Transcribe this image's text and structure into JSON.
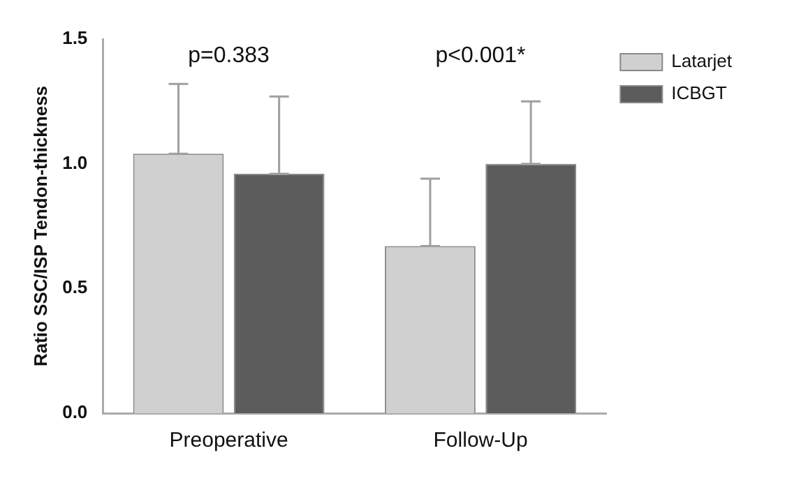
{
  "chart_data": {
    "type": "bar",
    "ylabel": "Ratio SSC/ISP Tendon-thickness",
    "categories": [
      "Preoperative",
      "Follow-Up"
    ],
    "series": [
      {
        "name": "Latarjet",
        "color": "#d0d0d0",
        "values": [
          1.04,
          0.67
        ],
        "errors": [
          [
            1.04,
            1.32
          ],
          [
            0.67,
            0.94
          ]
        ]
      },
      {
        "name": "ICBGT",
        "color": "#5c5c5c",
        "values": [
          0.96,
          1.0
        ],
        "errors": [
          [
            0.96,
            1.27
          ],
          [
            1.0,
            1.25
          ]
        ]
      }
    ],
    "ylim": [
      0,
      1.5
    ],
    "yticks": [
      {
        "value": 0,
        "label": "0.0"
      },
      0.5,
      {
        "value": 1,
        "label": "1.0"
      },
      1.5
    ],
    "annotations": [
      "p=0.383",
      "p<0.001*"
    ],
    "grid": false,
    "legend": "top right"
  }
}
